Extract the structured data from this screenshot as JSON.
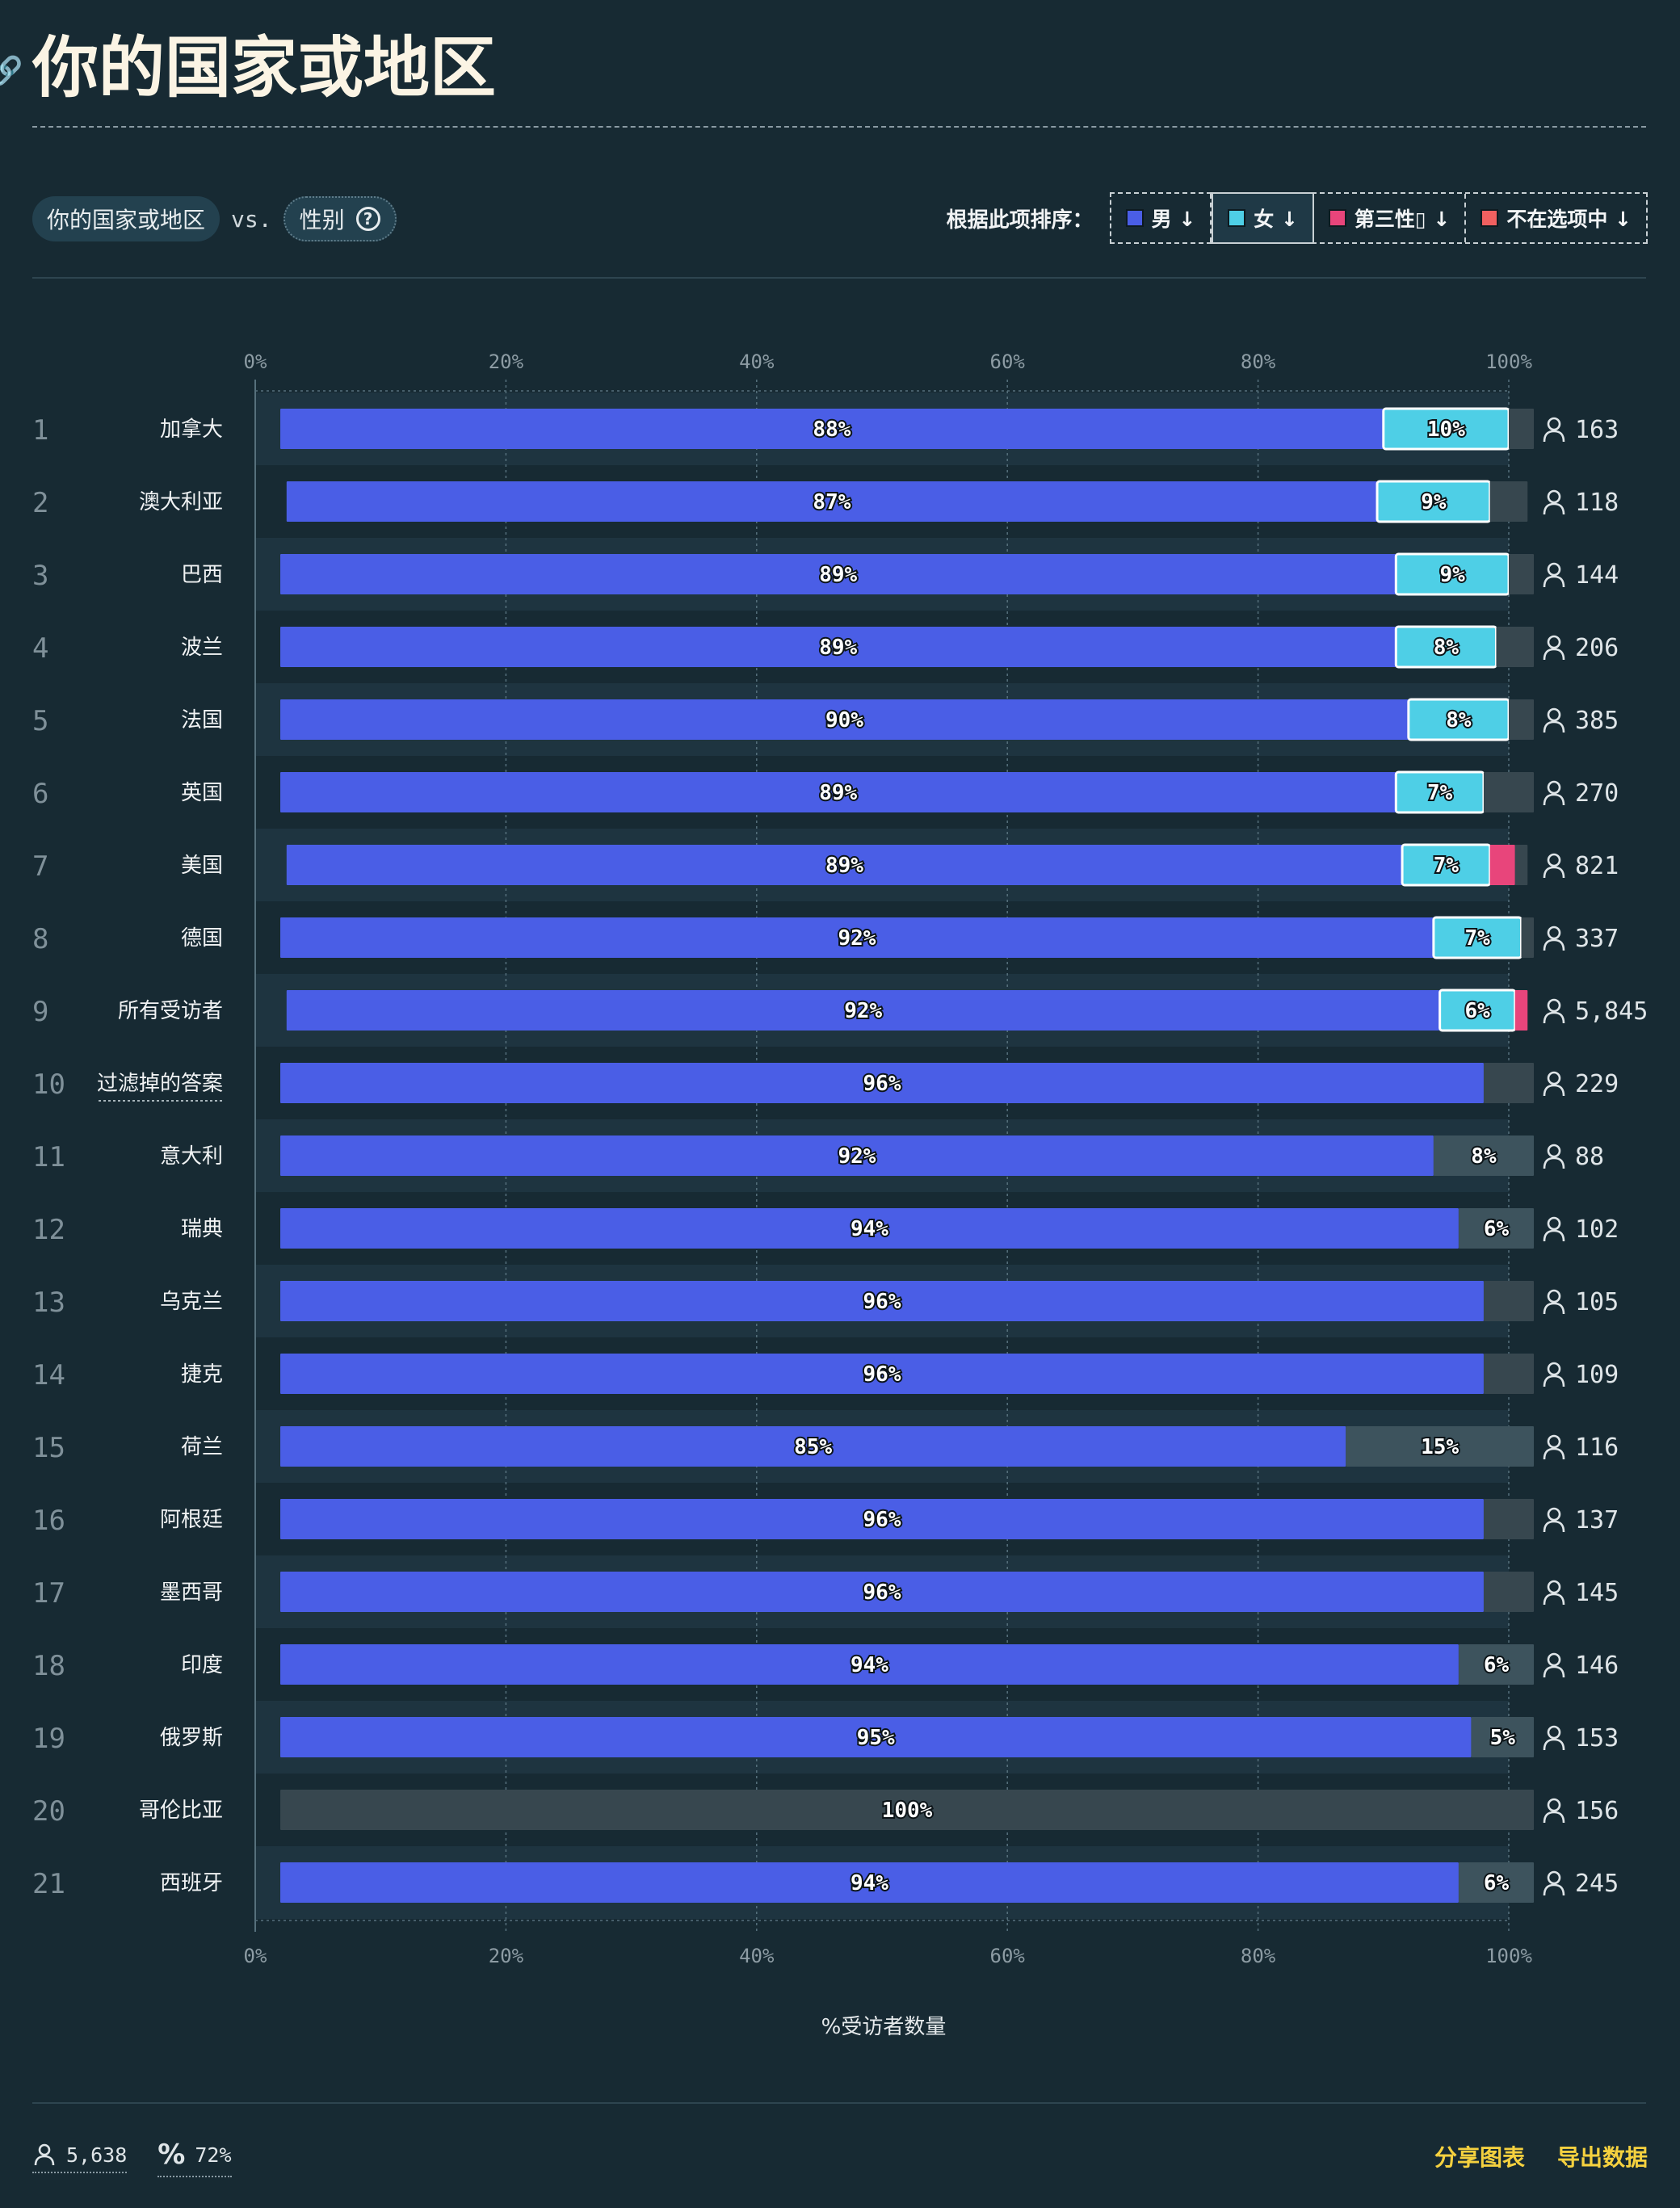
{
  "page": {
    "title": "你的国家或地区",
    "filter": {
      "first": "你的国家或地区",
      "vs": "vs.",
      "second": "性别"
    },
    "sort": {
      "label": "根据此项排序：",
      "options": [
        {
          "label": "男 ↓",
          "color": "#4a5ee6"
        },
        {
          "label": "女 ↓",
          "color": "#4ecfe6",
          "active": true
        },
        {
          "label": "第三性▯ ↓",
          "color": "#e8457b"
        },
        {
          "label": "不在选项中 ↓",
          "color": "#f06060"
        }
      ]
    },
    "footer": {
      "respondents": "5,638",
      "percent": "72%",
      "share": "分享图表",
      "export": "导出数据"
    }
  },
  "chart_data": {
    "type": "bar",
    "orientation": "horizontal",
    "stacked": true,
    "xlabel": "%受访者数量",
    "xlim": [
      0,
      100
    ],
    "ticks": [
      "0%",
      "20%",
      "40%",
      "60%",
      "80%",
      "100%"
    ],
    "grid": true,
    "colors": {
      "male": "#4a5ee6",
      "female": "#4ecfe6",
      "third": "#e8457b",
      "other": "#f06060",
      "rest": "#37474f"
    },
    "series_keys": [
      "male",
      "female",
      "third",
      "other",
      "rest"
    ],
    "rows": [
      {
        "rank": 1,
        "label": "加拿大",
        "count": "163",
        "values": [
          88,
          10,
          0,
          0,
          2
        ]
      },
      {
        "rank": 2,
        "label": "澳大利亚",
        "count": "118",
        "values": [
          87,
          9,
          0,
          0,
          3
        ]
      },
      {
        "rank": 3,
        "label": "巴西",
        "count": "144",
        "values": [
          89,
          9,
          0,
          0,
          2
        ]
      },
      {
        "rank": 4,
        "label": "波兰",
        "count": "206",
        "values": [
          89,
          8,
          0,
          0,
          3
        ]
      },
      {
        "rank": 5,
        "label": "法国",
        "count": "385",
        "values": [
          90,
          8,
          0,
          0,
          2
        ]
      },
      {
        "rank": 6,
        "label": "英国",
        "count": "270",
        "values": [
          89,
          7,
          0,
          0,
          4
        ]
      },
      {
        "rank": 7,
        "label": "美国",
        "count": "821",
        "values": [
          89,
          7,
          2,
          0,
          1
        ]
      },
      {
        "rank": 8,
        "label": "德国",
        "count": "337",
        "values": [
          92,
          7,
          0,
          0,
          1
        ]
      },
      {
        "rank": 9,
        "label": "所有受访者",
        "count": "5,845",
        "values": [
          92,
          6,
          1,
          0,
          0
        ]
      },
      {
        "rank": 10,
        "label": "过滤掉的答案",
        "count": "229",
        "values": [
          96,
          0,
          0,
          0,
          4
        ],
        "underline": true
      },
      {
        "rank": 11,
        "label": "意大利",
        "count": "88",
        "values": [
          92,
          0,
          0,
          0,
          8
        ]
      },
      {
        "rank": 12,
        "label": "瑞典",
        "count": "102",
        "values": [
          94,
          0,
          0,
          0,
          6
        ]
      },
      {
        "rank": 13,
        "label": "乌克兰",
        "count": "105",
        "values": [
          96,
          0,
          0,
          0,
          4
        ]
      },
      {
        "rank": 14,
        "label": "捷克",
        "count": "109",
        "values": [
          96,
          0,
          0,
          0,
          4
        ]
      },
      {
        "rank": 15,
        "label": "荷兰",
        "count": "116",
        "values": [
          85,
          0,
          0,
          0,
          15
        ]
      },
      {
        "rank": 16,
        "label": "阿根廷",
        "count": "137",
        "values": [
          96,
          0,
          0,
          0,
          4
        ]
      },
      {
        "rank": 17,
        "label": "墨西哥",
        "count": "145",
        "values": [
          96,
          0,
          0,
          0,
          4
        ]
      },
      {
        "rank": 18,
        "label": "印度",
        "count": "146",
        "values": [
          94,
          0,
          0,
          0,
          6
        ]
      },
      {
        "rank": 19,
        "label": "俄罗斯",
        "count": "153",
        "values": [
          95,
          0,
          0,
          0,
          5
        ]
      },
      {
        "rank": 20,
        "label": "哥伦比亚",
        "count": "156",
        "values": [
          0,
          0,
          0,
          0,
          100
        ]
      },
      {
        "rank": 21,
        "label": "西班牙",
        "count": "245",
        "values": [
          94,
          0,
          0,
          0,
          6
        ]
      }
    ]
  }
}
